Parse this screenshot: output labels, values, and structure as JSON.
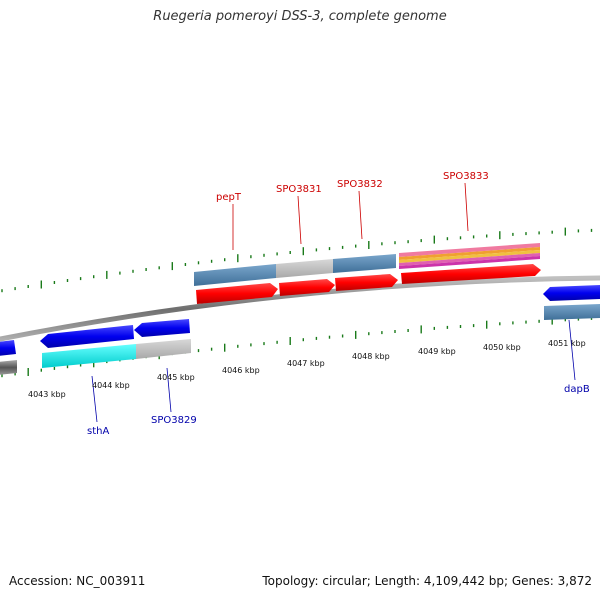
{
  "header": {
    "title": "Ruegeria pomeroyi DSS-3, complete genome"
  },
  "footer": {
    "accession": "Accession: NC_003911",
    "summary": "Topology: circular; Length: 4,109,442 bp; Genes: 3,872"
  },
  "colors": {
    "forward_label": "#cc0000",
    "reverse_label": "#0000aa",
    "tick": "#1a7a1a",
    "backbone": "#888888"
  },
  "scale": {
    "tick_labels": [
      "4043 kbp",
      "4044 kbp",
      "4045 kbp",
      "4046 kbp",
      "4047 kbp",
      "4048 kbp",
      "4049 kbp",
      "4050 kbp",
      "4051 kbp"
    ]
  },
  "gene_labels": [
    {
      "name": "pepT",
      "strand": "forward"
    },
    {
      "name": "SPO3831",
      "strand": "forward"
    },
    {
      "name": "SPO3832",
      "strand": "forward"
    },
    {
      "name": "SPO3833",
      "strand": "forward"
    },
    {
      "name": "sthA",
      "strand": "reverse"
    },
    {
      "name": "SPO3829",
      "strand": "reverse"
    },
    {
      "name": "dapB",
      "strand": "reverse"
    }
  ]
}
